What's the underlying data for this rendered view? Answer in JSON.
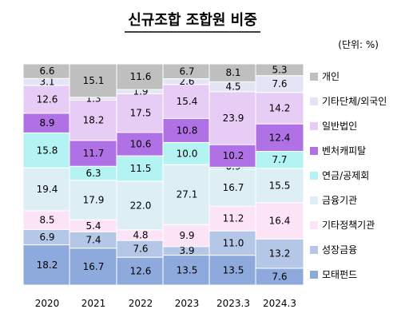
{
  "chart_data": {
    "type": "bar",
    "stacked": true,
    "normalized": true,
    "title": "신규조합 조합원 비중",
    "unit_label": "(단위: %)",
    "categories": [
      "2020",
      "2021",
      "2022",
      "2023",
      "2023.3",
      "2024.3"
    ],
    "series": [
      {
        "name": "모태펀드",
        "color": "#8EA9DB",
        "values": [
          18.2,
          16.7,
          12.6,
          13.5,
          13.5,
          7.6
        ]
      },
      {
        "name": "성장금융",
        "color": "#B4C7E7",
        "values": [
          6.9,
          7.4,
          7.6,
          3.9,
          11.0,
          13.2
        ]
      },
      {
        "name": "기타정책기관",
        "color": "#FCE4F6",
        "values": [
          8.5,
          5.4,
          4.8,
          9.9,
          11.2,
          16.4
        ]
      },
      {
        "name": "금융기관",
        "color": "#DDEEF4",
        "values": [
          19.4,
          17.9,
          22.0,
          27.1,
          16.7,
          15.5
        ]
      },
      {
        "name": "연금/공제회",
        "color": "#B3F3F3",
        "values": [
          15.8,
          6.3,
          11.5,
          10.0,
          0.9,
          7.7
        ]
      },
      {
        "name": "벤처캐피탈",
        "color": "#B070E6",
        "values": [
          8.9,
          11.7,
          10.6,
          10.8,
          10.2,
          12.4
        ]
      },
      {
        "name": "일반법인",
        "color": "#E7CCF5",
        "values": [
          12.6,
          18.2,
          17.5,
          15.4,
          23.9,
          14.2
        ]
      },
      {
        "name": "기타단체/외국인",
        "color": "#E4E4F7",
        "values": [
          3.1,
          1.3,
          1.9,
          2.6,
          4.5,
          7.6
        ]
      },
      {
        "name": "개인",
        "color": "#BFBFBF",
        "values": [
          6.6,
          15.1,
          11.6,
          6.7,
          8.1,
          5.3
        ]
      }
    ],
    "ylim": [
      0,
      100
    ],
    "grid": false,
    "legend_position": "right"
  }
}
